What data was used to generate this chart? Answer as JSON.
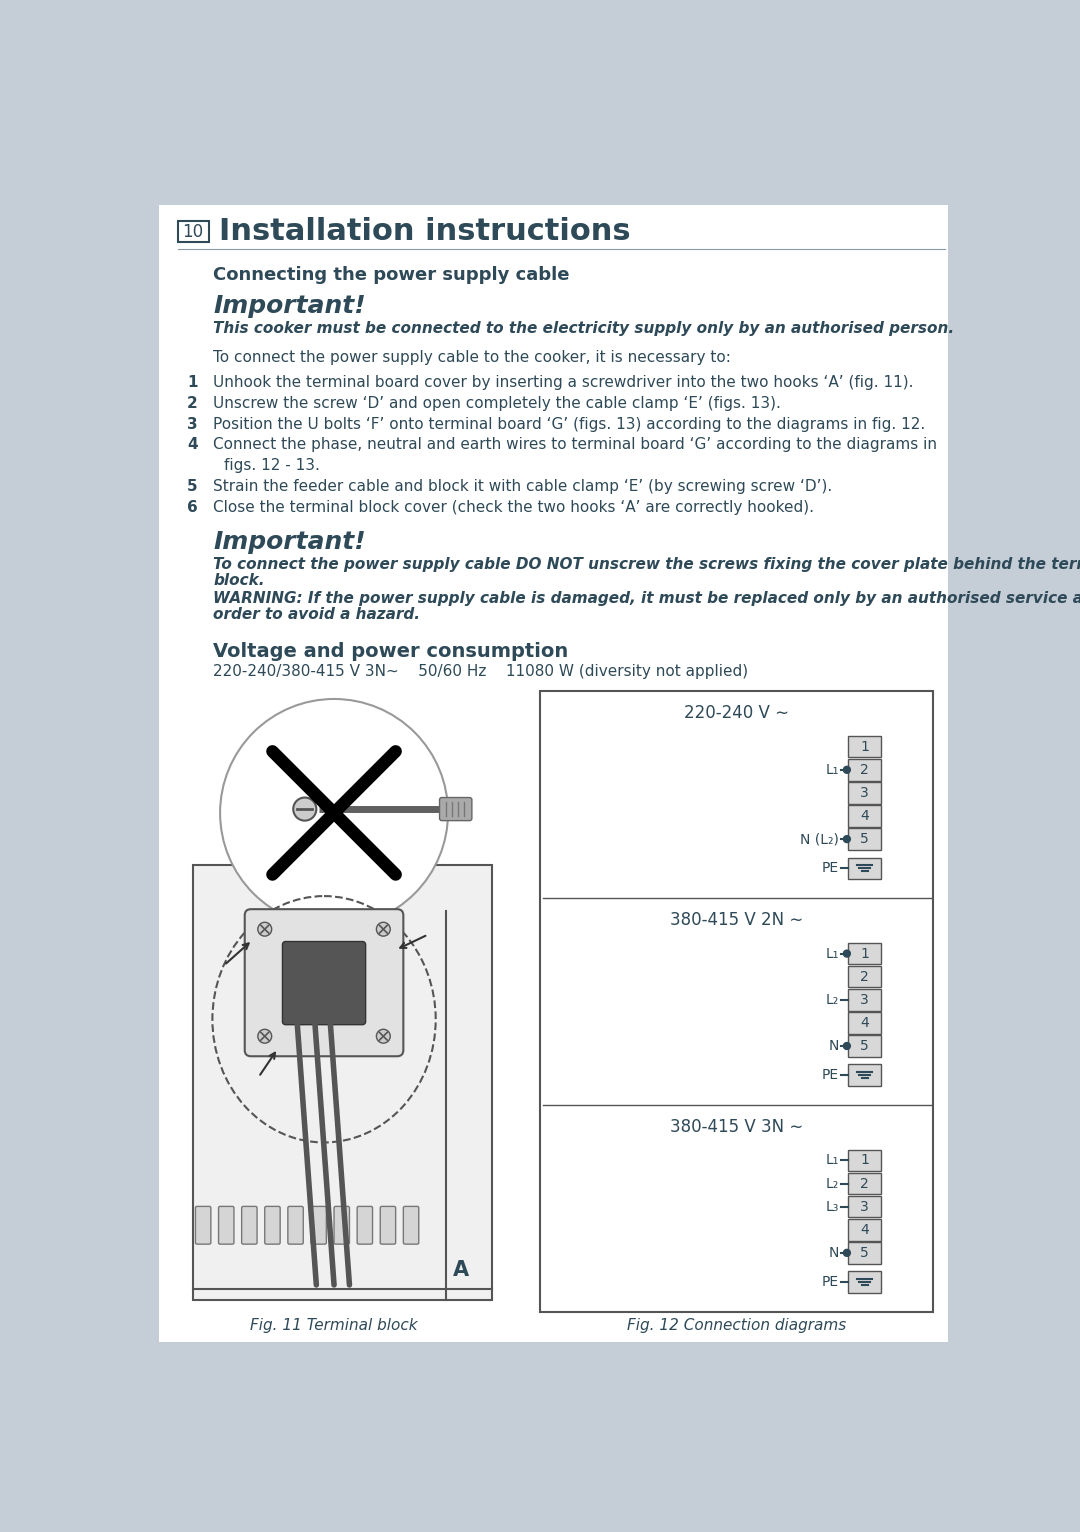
{
  "bg_color": "#c5cdd6",
  "page_bg": "#ffffff",
  "text_color": "#2e4957",
  "title_num": "10",
  "title_text": "Installation instructions",
  "section1_title": "Connecting the power supply cable",
  "important1_title": "Important!",
  "important1_bold": "This cooker must be connected to the electricity supply only by an authorised person.",
  "intro_text": "To connect the power supply cable to the cooker, it is necessary to:",
  "steps": [
    [
      "1",
      "Unhook the terminal board cover by inserting a screwdriver into the two hooks ‘A’ (fig. 11)."
    ],
    [
      "2",
      "Unscrew the screw ‘D’ and open completely the cable clamp ‘E’ (figs. 13)."
    ],
    [
      "3",
      "Position the U bolts ‘F’ onto terminal board ‘G’ (figs. 13) according to the diagrams in fig. 12."
    ],
    [
      "4",
      "Connect the phase, neutral and earth wires to terminal board ‘G’ according to the diagrams in"
    ],
    [
      "",
      "figs. 12 - 13."
    ],
    [
      "5",
      "Strain the feeder cable and block it with cable clamp ‘E’ (by screwing screw ‘D’)."
    ],
    [
      "6",
      "Close the terminal block cover (check the two hooks ‘A’ are correctly hooked)."
    ]
  ],
  "important2_title": "Important!",
  "important2_text1": "To connect the power supply cable DO NOT unscrew the screws fixing the cover plate behind the terminal",
  "important2_text2": "block.",
  "important2_text3": "WARNING: If the power supply cable is damaged, it must be replaced only by an authorised service agent in",
  "important2_text4": "order to avoid a hazard.",
  "voltage_title": "Voltage and power consumption",
  "voltage_spec": "220-240/380-415 V 3N~    50/60 Hz    11080 W (diversity not applied)",
  "fig11_caption": "Fig. 11 Terminal block",
  "fig12_caption": "Fig. 12 Connection diagrams",
  "diag1_title": "220-240 V ∼",
  "diag2_title": "380-415 V 2N ∼",
  "diag3_title": "380-415 V 3N ∼"
}
